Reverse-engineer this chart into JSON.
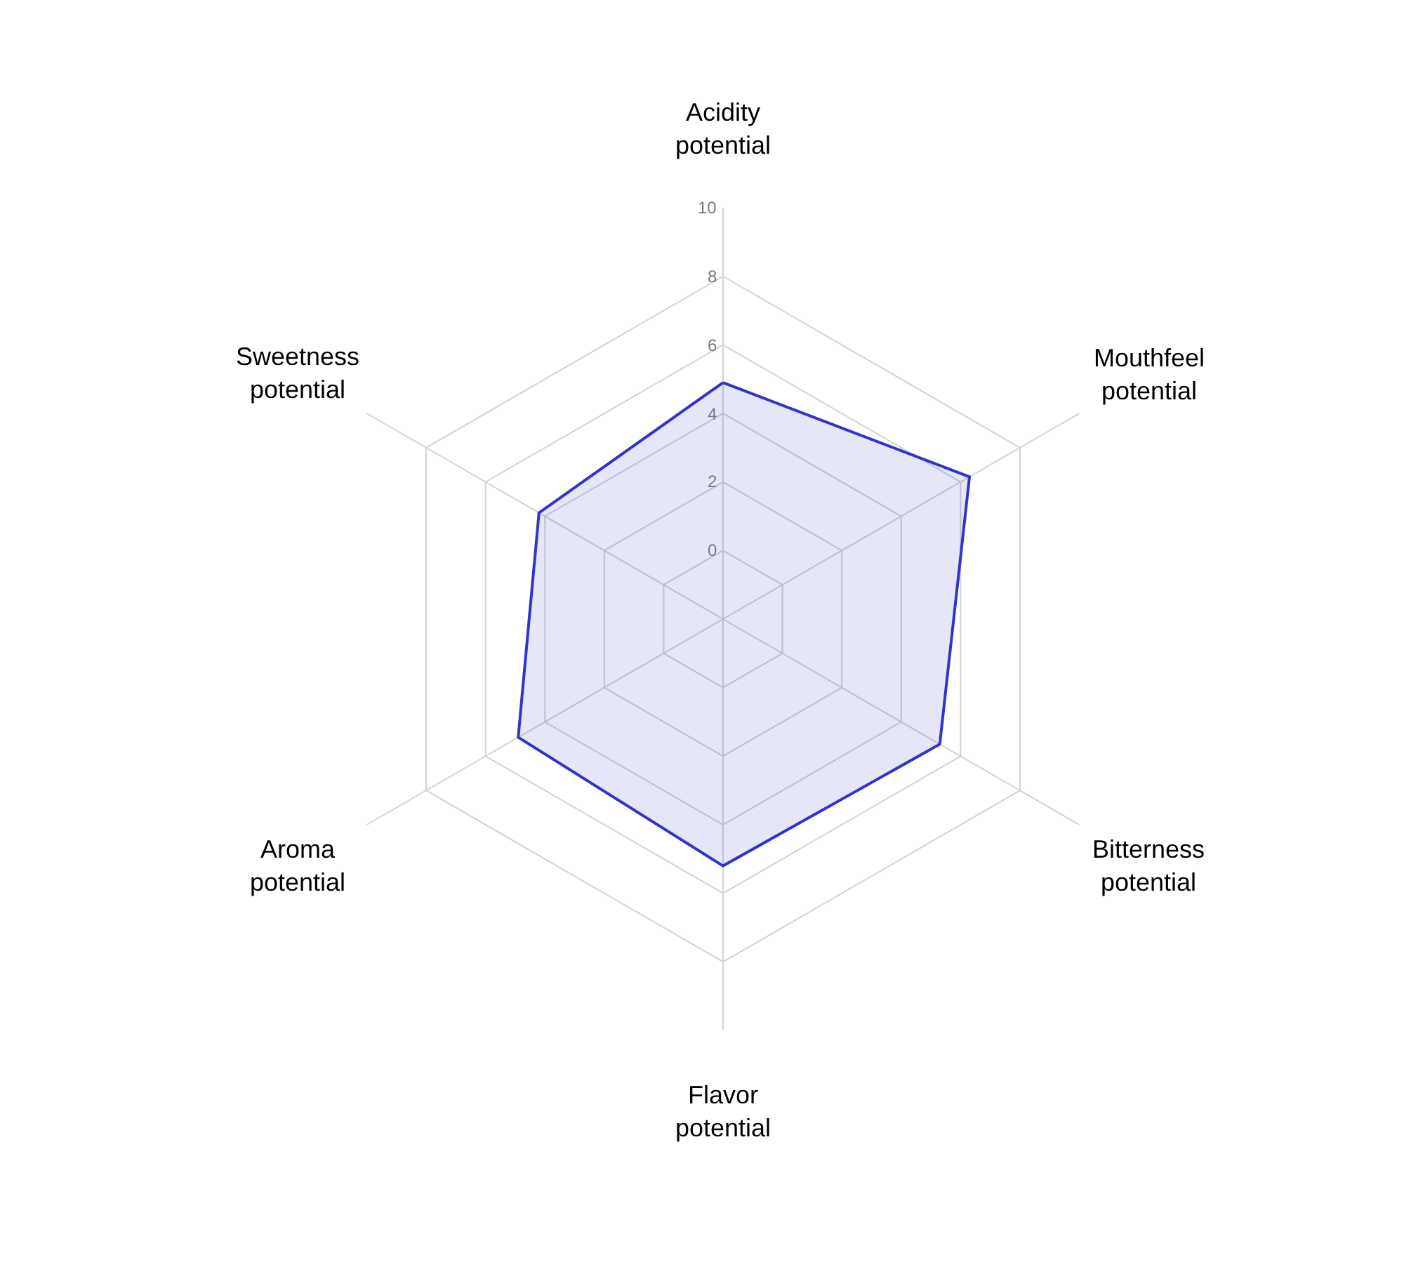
{
  "chart_data": {
    "type": "radar",
    "categories": [
      "Acidity potential",
      "Mouthfeel potential",
      "Bitterness potential",
      "Flavor potential",
      "Aroma potential",
      "Sweetness potential"
    ],
    "series": [
      {
        "color": "#3333cc",
        "values": [
          4.9,
          6.3,
          5.3,
          5.2,
          4.9,
          4.2
        ]
      }
    ],
    "ylim": [
      -2,
      10
    ],
    "yticks": [
      0,
      2,
      4,
      6,
      8,
      10
    ],
    "grid": true,
    "marker": "none",
    "line_style": "solid"
  }
}
